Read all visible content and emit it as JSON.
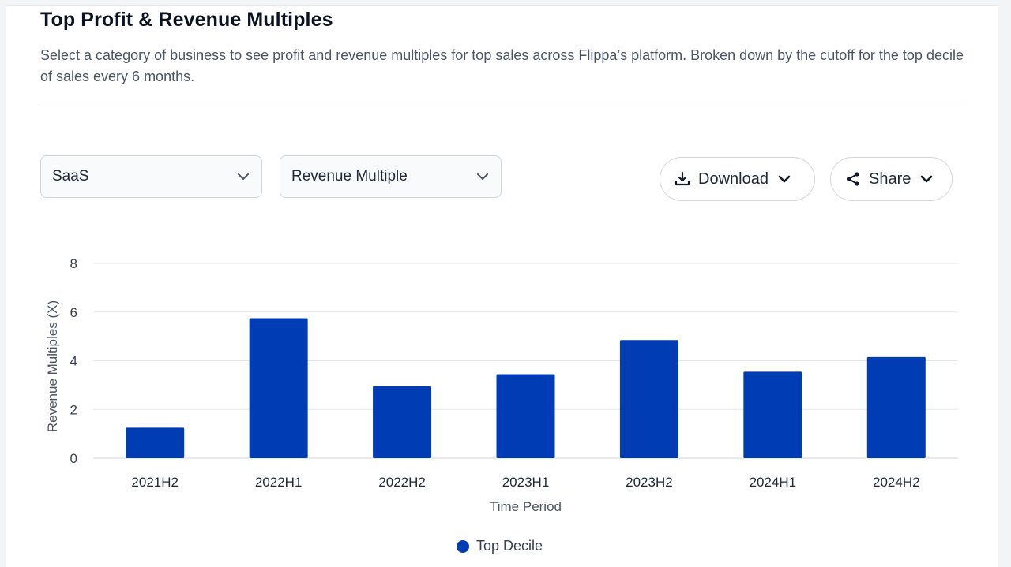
{
  "header": {
    "title": "Top Profit & Revenue Multiples",
    "description": "Select a category of business to see profit and revenue multiples for top sales across Flippa’s platform. Broken down by the cutoff for the top decile of sales every 6 months."
  },
  "controls": {
    "category_select": {
      "value": "SaaS",
      "icon": "chevron-down-icon"
    },
    "metric_select": {
      "value": "Revenue Multiple",
      "icon": "chevron-down-icon"
    },
    "download_button": {
      "label": "Download",
      "icon": "download-icon",
      "menu_icon": "chevron-down-icon"
    },
    "share_button": {
      "label": "Share",
      "icon": "share-icon",
      "menu_icon": "chevron-down-icon"
    }
  },
  "colors": {
    "bar": "#003cb3",
    "grid": "#e5e7eb",
    "axis_text": "#4b5563"
  },
  "chart_data": {
    "type": "bar",
    "categories": [
      "2021H2",
      "2022H1",
      "2022H2",
      "2023H1",
      "2023H2",
      "2024H1",
      "2024H2"
    ],
    "series": [
      {
        "name": "Top Decile",
        "values": [
          1.25,
          5.75,
          2.95,
          3.45,
          4.85,
          3.55,
          4.15
        ]
      }
    ],
    "xlabel": "Time Period",
    "ylabel": "Revenue Multiples (X)",
    "ylim": [
      0,
      8
    ],
    "yticks": [
      0,
      2,
      4,
      6,
      8
    ],
    "grid": true,
    "legend": "bottom-center"
  }
}
